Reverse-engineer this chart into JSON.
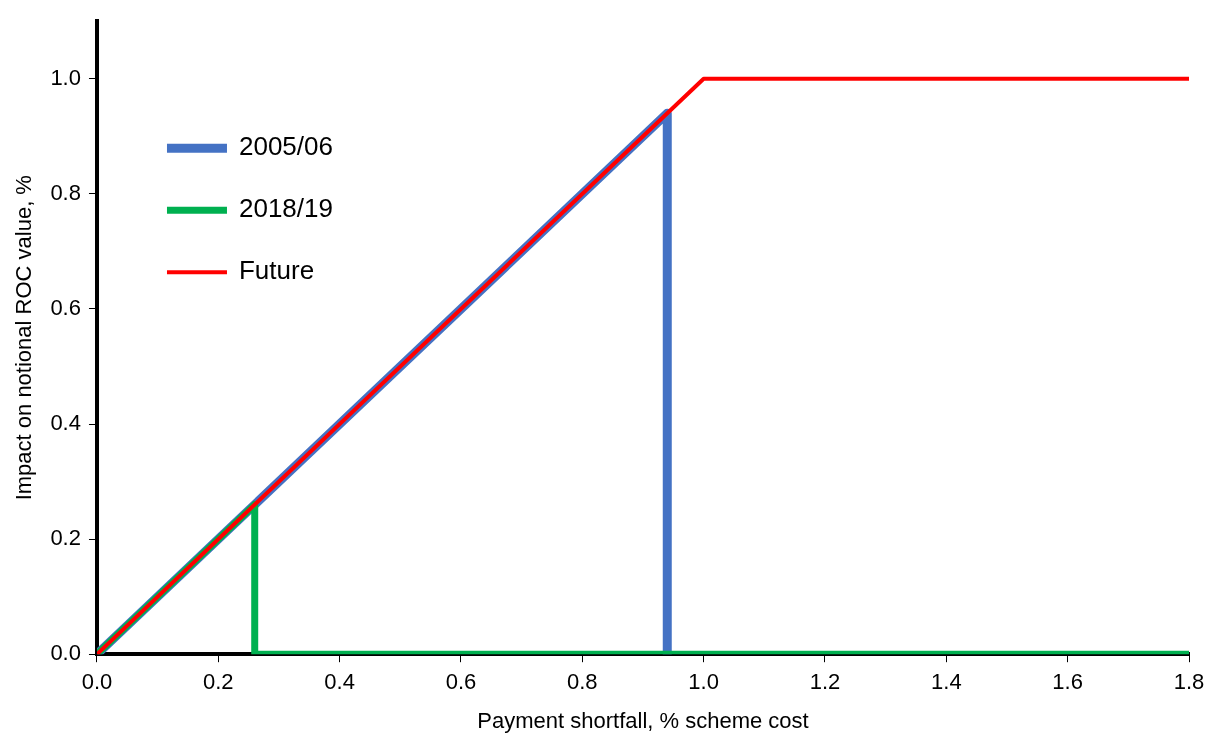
{
  "chart_data": {
    "type": "line",
    "xlabel": "Payment shortfall, % scheme cost",
    "ylabel": "Impact on notional ROC value, %",
    "xlim": [
      0,
      1.8
    ],
    "xticks": [
      {
        "value": 0,
        "label": "0.0"
      },
      0.2,
      0.4,
      0.6,
      0.8,
      {
        "value": 1,
        "label": "1.0"
      },
      1.2,
      1.4,
      1.6,
      1.8
    ],
    "ylim": [
      0,
      1.1
    ],
    "yticks": [
      {
        "value": 0,
        "label": "0.0"
      },
      0.2,
      0.4,
      0.6,
      0.8,
      {
        "value": 1,
        "label": "1.0"
      }
    ],
    "grid": false,
    "legend": "top left",
    "marker": "none",
    "line_style": "solid",
    "series": [
      {
        "name": "2005/06",
        "color": "#4472c4",
        "x": [
          0,
          0.94,
          0.94
        ],
        "values": [
          0,
          0.94,
          0
        ]
      },
      {
        "name": "2018/19",
        "color": "#00b050",
        "x": [
          0,
          0.26,
          0.26,
          1.8
        ],
        "values": [
          0,
          0.26,
          0,
          0
        ]
      },
      {
        "name": "Future",
        "color": "#ff0000",
        "x": [
          0,
          1,
          1.8
        ],
        "values": [
          0,
          1,
          1
        ]
      }
    ]
  }
}
